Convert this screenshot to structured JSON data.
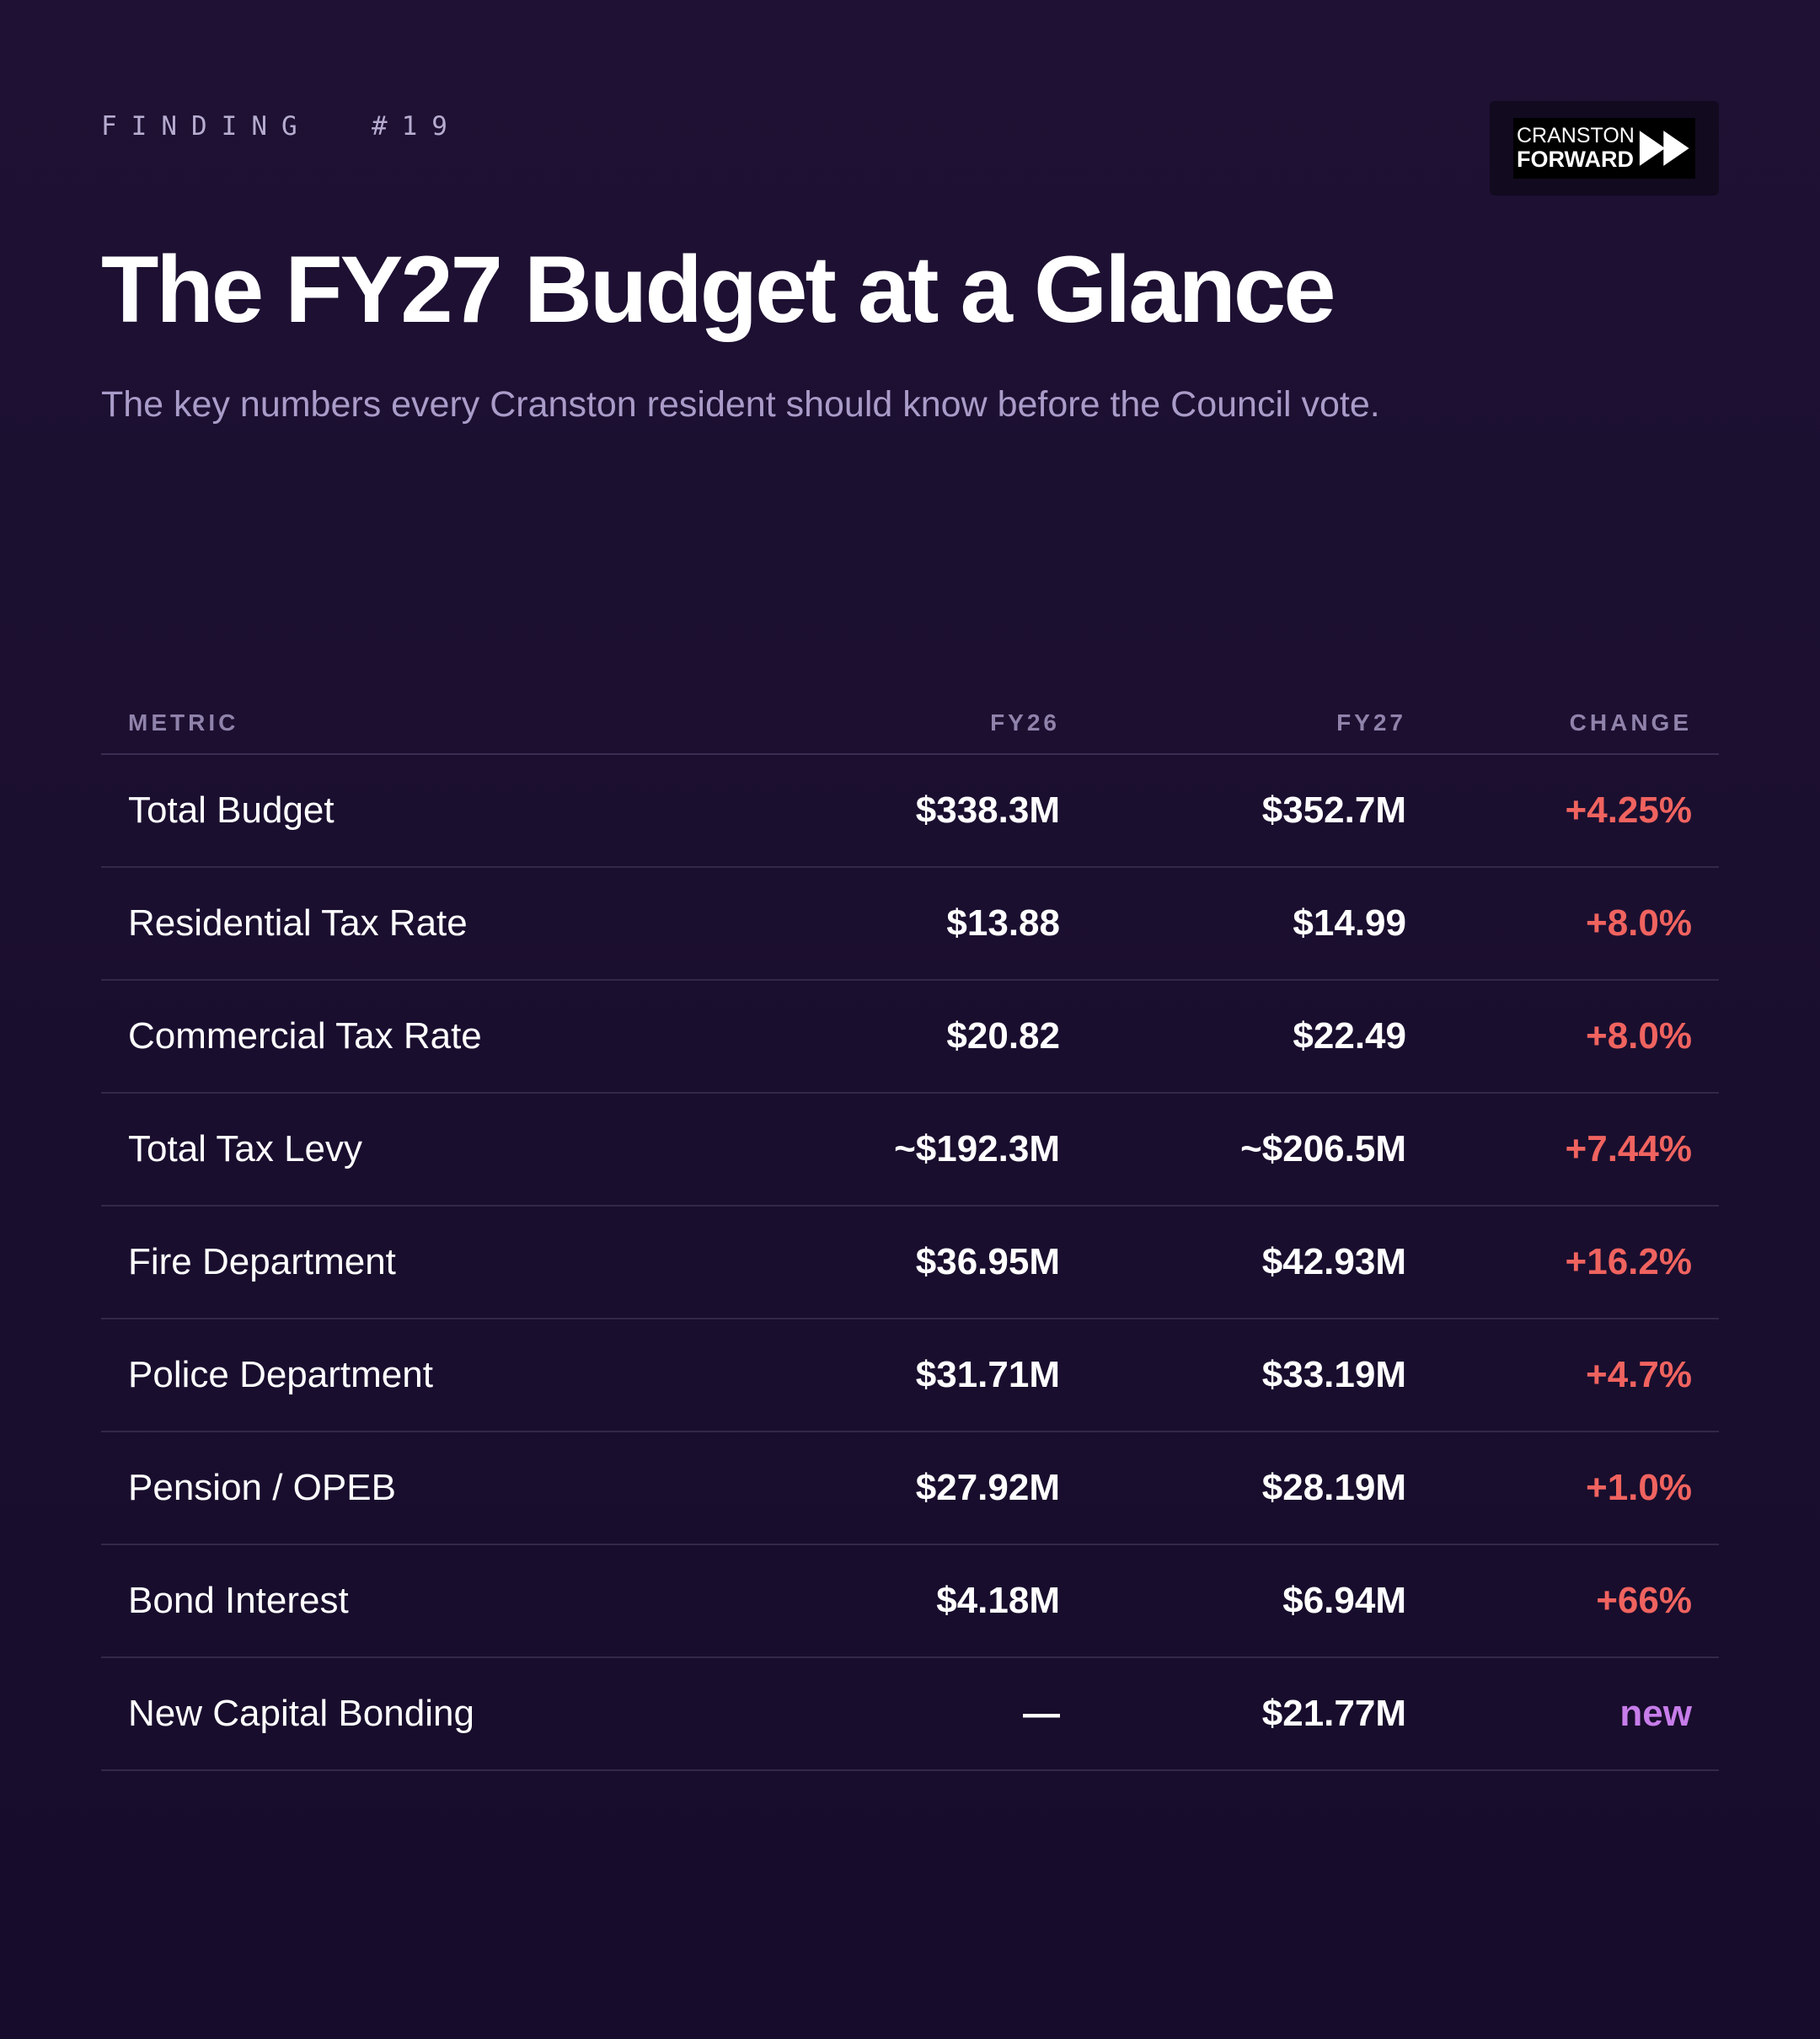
{
  "header": {
    "kicker": "FINDING  #19",
    "title": "The FY27 Budget at a Glance",
    "subtitle": "The key numbers every Cranston resident should know before the Council vote.",
    "logo": {
      "line1": "CRANSTON",
      "line2": "FORWARD",
      "icon": "fast-forward-icon"
    }
  },
  "table": {
    "columns": {
      "metric": "METRIC",
      "fy26": "FY26",
      "fy27": "FY27",
      "change": "CHANGE"
    },
    "rows": [
      {
        "metric": "Total Budget",
        "fy26": "$338.3M",
        "fy27": "$352.7M",
        "change": "+4.25%",
        "change_color": "#f0635f"
      },
      {
        "metric": "Residential Tax Rate",
        "fy26": "$13.88",
        "fy27": "$14.99",
        "change": "+8.0%",
        "change_color": "#f0635f"
      },
      {
        "metric": "Commercial Tax Rate",
        "fy26": "$20.82",
        "fy27": "$22.49",
        "change": "+8.0%",
        "change_color": "#f0635f"
      },
      {
        "metric": "Total Tax Levy",
        "fy26": "~$192.3M",
        "fy27": "~$206.5M",
        "change": "+7.44%",
        "change_color": "#f0635f"
      },
      {
        "metric": "Fire Department",
        "fy26": "$36.95M",
        "fy27": "$42.93M",
        "change": "+16.2%",
        "change_color": "#f0635f"
      },
      {
        "metric": "Police Department",
        "fy26": "$31.71M",
        "fy27": "$33.19M",
        "change": "+4.7%",
        "change_color": "#f0635f"
      },
      {
        "metric": "Pension / OPEB",
        "fy26": "$27.92M",
        "fy27": "$28.19M",
        "change": "+1.0%",
        "change_color": "#f0635f"
      },
      {
        "metric": "Bond Interest",
        "fy26": "$4.18M",
        "fy27": "$6.94M",
        "change": "+66%",
        "change_color": "#f0635f"
      },
      {
        "metric": "New Capital Bonding",
        "fy26": "—",
        "fy27": "$21.77M",
        "change": "new",
        "change_color": "#c77dea"
      }
    ]
  }
}
